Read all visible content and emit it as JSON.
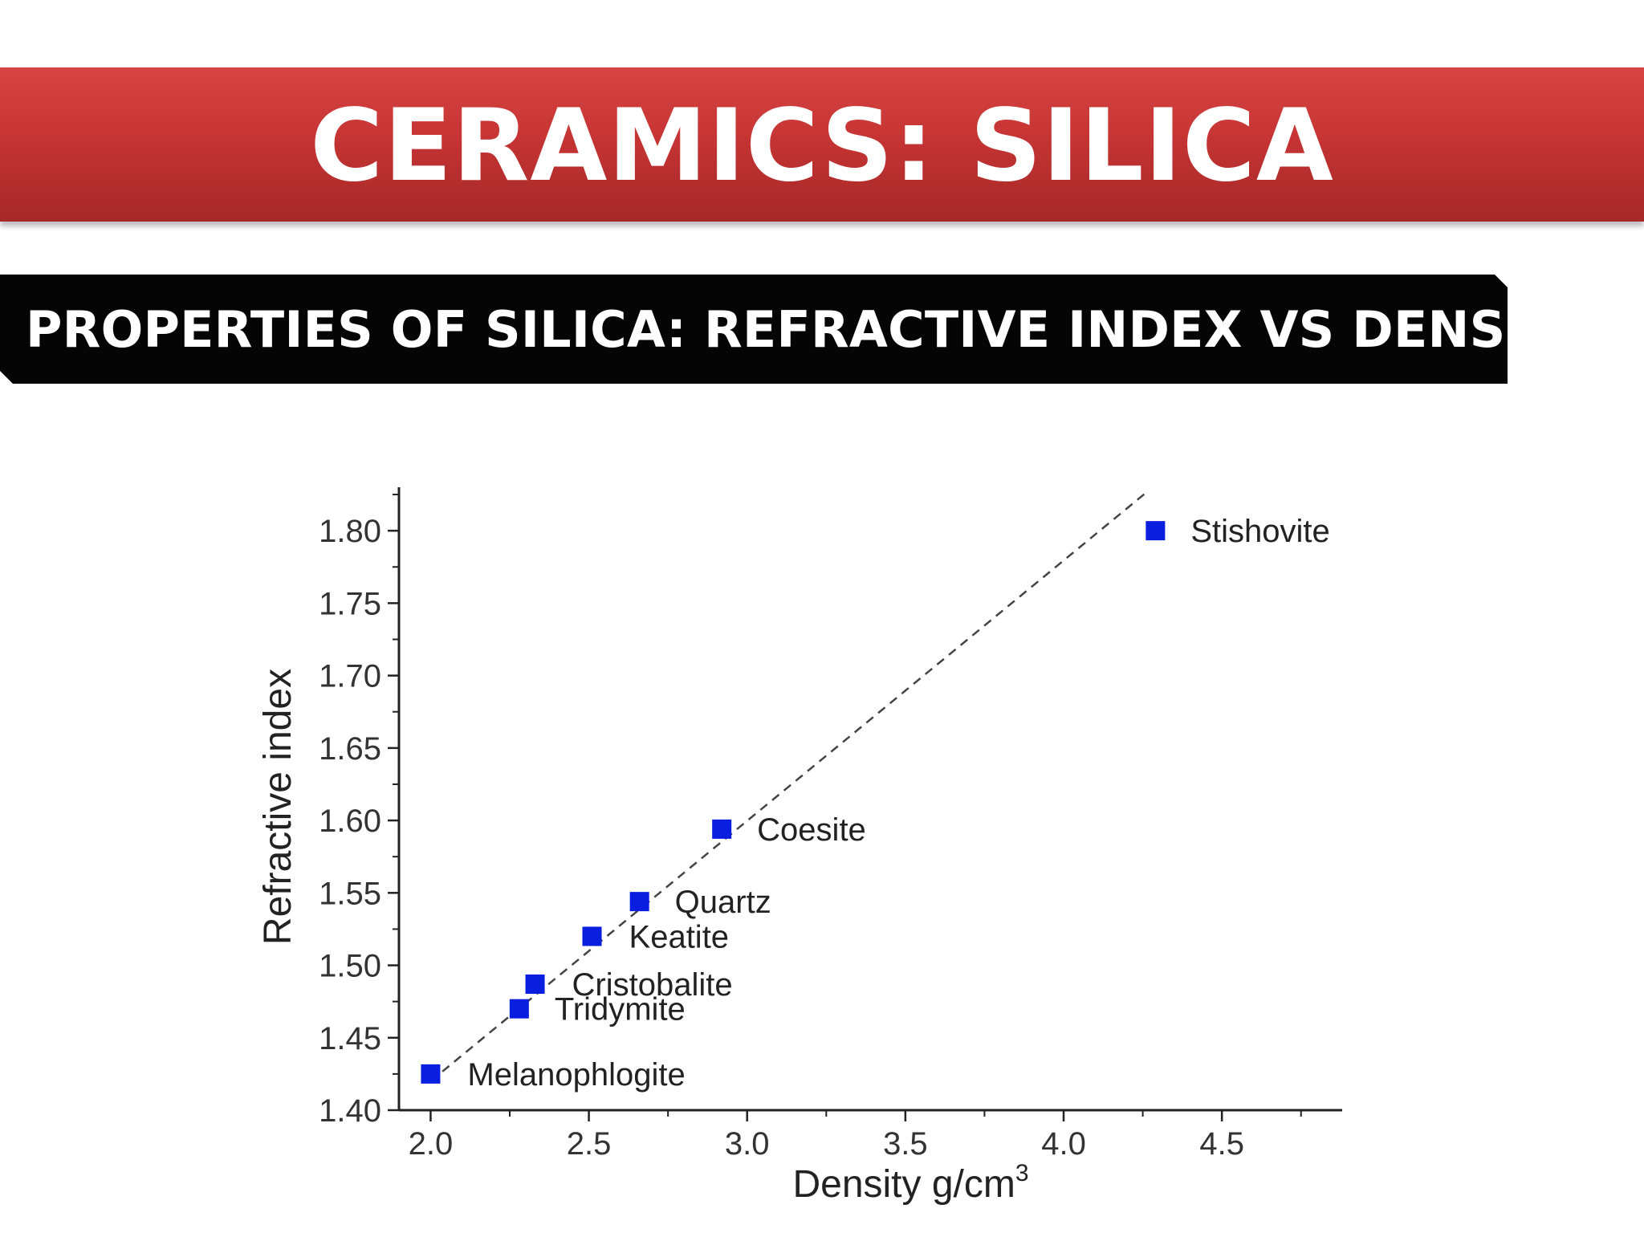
{
  "slide": {
    "title": "CERAMICS: SILICA",
    "subtitle": "PROPERTIES OF SILICA: REFRACTIVE INDEX VS DENSITY"
  },
  "colors": {
    "banner": "#c63434",
    "subtitle_bg": "#050505",
    "marker": "#0a1ee0"
  },
  "chart_data": {
    "type": "scatter",
    "title": "",
    "xlabel": "Density g/cm",
    "xlabel_superscript": "3",
    "ylabel": "Refractive index",
    "xlim": [
      1.9,
      4.88
    ],
    "ylim": [
      1.4,
      1.83
    ],
    "x_ticks": [
      "2.0",
      "2.5",
      "3.0",
      "3.5",
      "4.0",
      "4.5"
    ],
    "y_ticks": [
      "1.40",
      "1.45",
      "1.50",
      "1.55",
      "1.60",
      "1.65",
      "1.70",
      "1.75",
      "1.80"
    ],
    "grid": false,
    "trendline": {
      "style": "dashed",
      "from": [
        2.0,
        1.42
      ],
      "to": [
        4.27,
        1.828
      ]
    },
    "points": [
      {
        "label": "Melanophlogite",
        "x": 2.0,
        "y": 1.425
      },
      {
        "label": "Tridymite",
        "x": 2.28,
        "y": 1.47
      },
      {
        "label": "Cristobalite",
        "x": 2.33,
        "y": 1.487
      },
      {
        "label": "Keatite",
        "x": 2.51,
        "y": 1.52
      },
      {
        "label": "Quartz",
        "x": 2.66,
        "y": 1.544
      },
      {
        "label": "Coesite",
        "x": 2.92,
        "y": 1.594
      },
      {
        "label": "Stishovite",
        "x": 4.29,
        "y": 1.8
      }
    ]
  }
}
